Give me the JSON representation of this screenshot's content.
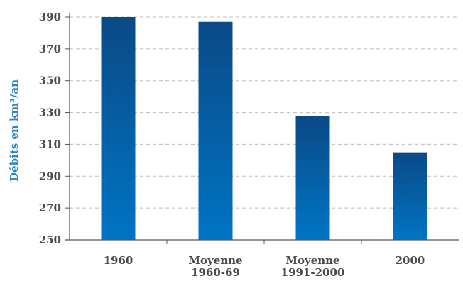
{
  "chart_data": {
    "type": "bar",
    "title": "",
    "xlabel": "",
    "ylabel": "Débits en km³/an",
    "ylim": [
      250,
      390
    ],
    "yticks": [
      250,
      270,
      290,
      310,
      330,
      350,
      370,
      390
    ],
    "grid": "horizontal dashed",
    "categories": [
      [
        "1960"
      ],
      [
        "Moyenne",
        "1960-69"
      ],
      [
        "Moyenne",
        "1991-2000"
      ],
      [
        "2000"
      ]
    ],
    "values": [
      390,
      387,
      328,
      305
    ],
    "colors": {
      "bar_top": "#0a4a86",
      "bar_bottom": "#0074c4",
      "axis": "#555555",
      "grid": "#bdbdbd",
      "ylabel": "#2e86c1",
      "text": "#4a4a4a"
    }
  }
}
